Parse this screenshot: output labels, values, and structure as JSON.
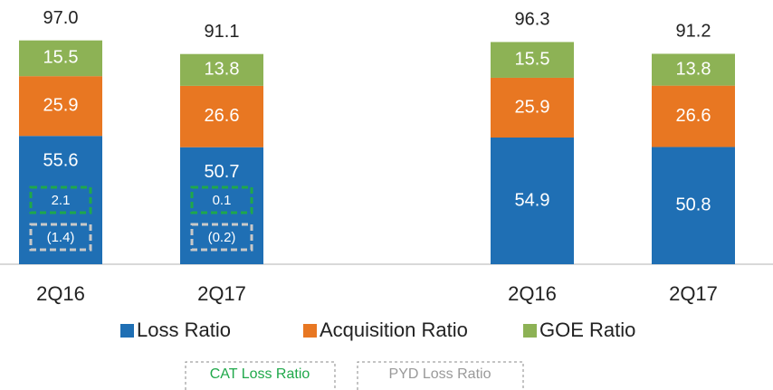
{
  "chart_data": {
    "type": "stacked_bar",
    "categories": [
      "2Q16",
      "2Q17",
      "2Q16",
      "2Q17"
    ],
    "series": [
      {
        "name": "Loss Ratio",
        "color": "#1f6fb4",
        "values": [
          55.6,
          50.7,
          54.9,
          50.8
        ]
      },
      {
        "name": "Acquisition Ratio",
        "color": "#e87722",
        "values": [
          25.9,
          26.6,
          25.9,
          26.6
        ]
      },
      {
        "name": "GOE Ratio",
        "color": "#8db255",
        "values": [
          15.5,
          13.8,
          15.5,
          13.8
        ]
      }
    ],
    "totals": {
      "values": [
        97.0,
        91.1,
        96.3,
        91.2
      ],
      "value_labels": [
        "97.0",
        "91.1",
        "96.3",
        "91.2"
      ]
    },
    "cat_loss_ratio": {
      "name": "CAT Loss Ratio",
      "color": "#1fa84a",
      "values": [
        2.1,
        0.1
      ]
    },
    "pyd_loss_ratio": {
      "name": "PYD Loss Ratio",
      "color": "#c8c8c8",
      "values": [
        -1.4,
        -0.2
      ],
      "value_labels": [
        "(1.4)",
        "(0.2)"
      ]
    },
    "ylim": [
      0,
      100
    ]
  }
}
